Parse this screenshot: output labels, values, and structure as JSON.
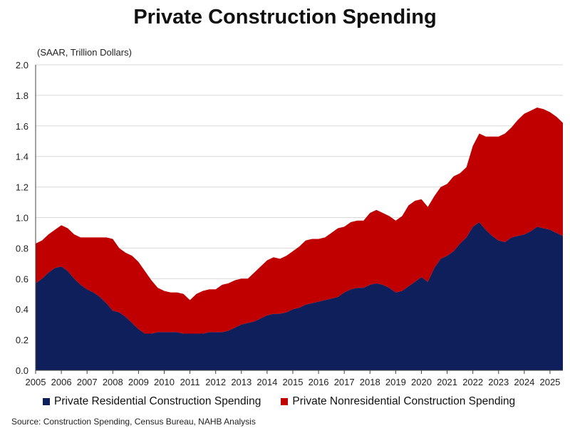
{
  "chart_data": {
    "type": "area",
    "stacked": true,
    "title": "Private Construction Spending",
    "unit_note": "(SAAR, Trillion Dollars)",
    "xlabel": "",
    "ylabel": "",
    "x_ticks": [
      "2005",
      "2006",
      "2007",
      "2008",
      "2009",
      "2010",
      "2011",
      "2012",
      "2013",
      "2014",
      "2015",
      "2016",
      "2017",
      "2018",
      "2019",
      "2020",
      "2021",
      "2022",
      "2023",
      "2024",
      "2025"
    ],
    "y_ticks": [
      "0.0",
      "0.2",
      "0.4",
      "0.6",
      "0.8",
      "1.0",
      "1.2",
      "1.4",
      "1.6",
      "1.8",
      "2.0"
    ],
    "ylim": [
      0,
      2.0
    ],
    "xlim": [
      2005.0,
      2025.5
    ],
    "grid": true,
    "legend_position": "bottom",
    "x": [
      2005.0,
      2005.25,
      2005.5,
      2005.75,
      2006.0,
      2006.25,
      2006.5,
      2006.75,
      2007.0,
      2007.25,
      2007.5,
      2007.75,
      2008.0,
      2008.25,
      2008.5,
      2008.75,
      2009.0,
      2009.25,
      2009.5,
      2009.75,
      2010.0,
      2010.25,
      2010.5,
      2010.75,
      2011.0,
      2011.25,
      2011.5,
      2011.75,
      2012.0,
      2012.25,
      2012.5,
      2012.75,
      2013.0,
      2013.25,
      2013.5,
      2013.75,
      2014.0,
      2014.25,
      2014.5,
      2014.75,
      2015.0,
      2015.25,
      2015.5,
      2015.75,
      2016.0,
      2016.25,
      2016.5,
      2016.75,
      2017.0,
      2017.25,
      2017.5,
      2017.75,
      2018.0,
      2018.25,
      2018.5,
      2018.75,
      2019.0,
      2019.25,
      2019.5,
      2019.75,
      2020.0,
      2020.25,
      2020.5,
      2020.75,
      2021.0,
      2021.25,
      2021.5,
      2021.75,
      2022.0,
      2022.25,
      2022.5,
      2022.75,
      2023.0,
      2023.25,
      2023.5,
      2023.75,
      2024.0,
      2024.25,
      2024.5,
      2024.75,
      2025.0,
      2025.25,
      2025.5
    ],
    "series": [
      {
        "name": "Private Residential Construction Spending",
        "color": "#0e1f5b",
        "values": [
          0.57,
          0.6,
          0.64,
          0.67,
          0.68,
          0.65,
          0.6,
          0.56,
          0.53,
          0.51,
          0.48,
          0.44,
          0.39,
          0.38,
          0.35,
          0.31,
          0.27,
          0.24,
          0.24,
          0.25,
          0.25,
          0.25,
          0.25,
          0.24,
          0.24,
          0.24,
          0.24,
          0.25,
          0.25,
          0.25,
          0.26,
          0.28,
          0.3,
          0.31,
          0.32,
          0.34,
          0.36,
          0.37,
          0.37,
          0.38,
          0.4,
          0.41,
          0.43,
          0.44,
          0.45,
          0.46,
          0.47,
          0.48,
          0.51,
          0.53,
          0.54,
          0.54,
          0.56,
          0.57,
          0.56,
          0.54,
          0.51,
          0.52,
          0.55,
          0.58,
          0.61,
          0.58,
          0.67,
          0.73,
          0.75,
          0.78,
          0.83,
          0.87,
          0.94,
          0.97,
          0.92,
          0.88,
          0.85,
          0.84,
          0.87,
          0.88,
          0.89,
          0.91,
          0.94,
          0.93,
          0.92,
          0.9,
          0.88
        ]
      },
      {
        "name": "Private Nonresidential Construction Spending",
        "color": "#c00000",
        "values": [
          0.26,
          0.25,
          0.25,
          0.25,
          0.27,
          0.28,
          0.29,
          0.31,
          0.34,
          0.36,
          0.39,
          0.43,
          0.47,
          0.42,
          0.42,
          0.44,
          0.44,
          0.41,
          0.35,
          0.29,
          0.27,
          0.26,
          0.26,
          0.26,
          0.22,
          0.26,
          0.28,
          0.28,
          0.28,
          0.31,
          0.31,
          0.31,
          0.3,
          0.29,
          0.32,
          0.34,
          0.36,
          0.37,
          0.36,
          0.37,
          0.38,
          0.4,
          0.42,
          0.42,
          0.41,
          0.41,
          0.43,
          0.45,
          0.43,
          0.44,
          0.44,
          0.44,
          0.47,
          0.48,
          0.47,
          0.47,
          0.47,
          0.49,
          0.53,
          0.53,
          0.51,
          0.49,
          0.47,
          0.47,
          0.47,
          0.49,
          0.46,
          0.46,
          0.53,
          0.58,
          0.61,
          0.65,
          0.68,
          0.71,
          0.72,
          0.76,
          0.79,
          0.79,
          0.78,
          0.78,
          0.77,
          0.76,
          0.74
        ]
      }
    ]
  },
  "legend": {
    "residential_label": "Private Residential Construction Spending",
    "nonresidential_label": "Private Nonresidential Construction Spending"
  },
  "source": "Source: Construction Spending, Census Bureau, NAHB Analysis"
}
